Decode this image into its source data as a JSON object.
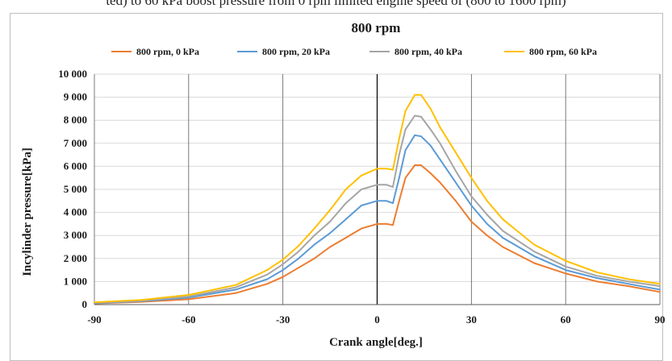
{
  "header": {
    "caption_fragment": "ted) to 60 kPa boost pressure from 0 rpm limited engine speed of (800 to 1600 rpm)"
  },
  "chart_data": {
    "type": "line",
    "title": "800 rpm",
    "xlabel": "Crank angle[deg.]",
    "ylabel": "Incylinder pressure[kPa]",
    "xlim": [
      -90,
      90
    ],
    "ylim": [
      0,
      10000
    ],
    "x_ticks": [
      "-90",
      "-60",
      "-30",
      "0",
      "30",
      "60",
      "90"
    ],
    "y_ticks": [
      "0",
      "1 000",
      "2 000",
      "3 000",
      "4 000",
      "5 000",
      "6 000",
      "7 000",
      "8 000",
      "9 000",
      "10 000"
    ],
    "grid": true,
    "legend_position": "top",
    "series": [
      {
        "name": "800 rpm, 0 kPa",
        "color": "#ed7d31",
        "points": [
          [
            -90,
            50
          ],
          [
            -75,
            120
          ],
          [
            -60,
            230
          ],
          [
            -45,
            500
          ],
          [
            -35,
            900
          ],
          [
            -30,
            1200
          ],
          [
            -25,
            1600
          ],
          [
            -20,
            2000
          ],
          [
            -15,
            2500
          ],
          [
            -10,
            2900
          ],
          [
            -5,
            3300
          ],
          [
            0,
            3500
          ],
          [
            3,
            3500
          ],
          [
            5,
            3450
          ],
          [
            7,
            4500
          ],
          [
            9,
            5500
          ],
          [
            12,
            6050
          ],
          [
            14,
            6050
          ],
          [
            17,
            5700
          ],
          [
            20,
            5300
          ],
          [
            25,
            4500
          ],
          [
            30,
            3600
          ],
          [
            35,
            3000
          ],
          [
            40,
            2500
          ],
          [
            50,
            1800
          ],
          [
            60,
            1350
          ],
          [
            70,
            1000
          ],
          [
            80,
            800
          ],
          [
            90,
            550
          ]
        ]
      },
      {
        "name": "800 rpm, 20 kPa",
        "color": "#5b9bd5",
        "points": [
          [
            -90,
            60
          ],
          [
            -75,
            150
          ],
          [
            -60,
            300
          ],
          [
            -45,
            650
          ],
          [
            -35,
            1100
          ],
          [
            -30,
            1500
          ],
          [
            -25,
            2000
          ],
          [
            -20,
            2600
          ],
          [
            -15,
            3100
          ],
          [
            -10,
            3700
          ],
          [
            -5,
            4300
          ],
          [
            0,
            4500
          ],
          [
            3,
            4500
          ],
          [
            5,
            4400
          ],
          [
            7,
            5500
          ],
          [
            9,
            6700
          ],
          [
            12,
            7350
          ],
          [
            14,
            7300
          ],
          [
            17,
            6900
          ],
          [
            20,
            6300
          ],
          [
            25,
            5300
          ],
          [
            30,
            4300
          ],
          [
            35,
            3500
          ],
          [
            40,
            2900
          ],
          [
            50,
            2100
          ],
          [
            60,
            1500
          ],
          [
            70,
            1150
          ],
          [
            80,
            900
          ],
          [
            90,
            650
          ]
        ]
      },
      {
        "name": "800 rpm, 40 kPa",
        "color": "#a5a5a5",
        "points": [
          [
            -90,
            80
          ],
          [
            -75,
            170
          ],
          [
            -60,
            350
          ],
          [
            -45,
            750
          ],
          [
            -35,
            1300
          ],
          [
            -30,
            1750
          ],
          [
            -25,
            2300
          ],
          [
            -20,
            3000
          ],
          [
            -15,
            3600
          ],
          [
            -10,
            4400
          ],
          [
            -5,
            5000
          ],
          [
            0,
            5200
          ],
          [
            3,
            5200
          ],
          [
            5,
            5100
          ],
          [
            7,
            6500
          ],
          [
            9,
            7600
          ],
          [
            12,
            8200
          ],
          [
            14,
            8150
          ],
          [
            17,
            7600
          ],
          [
            20,
            7000
          ],
          [
            25,
            5800
          ],
          [
            30,
            4700
          ],
          [
            35,
            3900
          ],
          [
            40,
            3200
          ],
          [
            50,
            2300
          ],
          [
            60,
            1650
          ],
          [
            70,
            1250
          ],
          [
            80,
            1000
          ],
          [
            90,
            800
          ]
        ]
      },
      {
        "name": "800 rpm, 60 kPa",
        "color": "#ffc000",
        "points": [
          [
            -90,
            100
          ],
          [
            -75,
            200
          ],
          [
            -60,
            420
          ],
          [
            -45,
            850
          ],
          [
            -35,
            1500
          ],
          [
            -30,
            1950
          ],
          [
            -25,
            2550
          ],
          [
            -20,
            3300
          ],
          [
            -15,
            4100
          ],
          [
            -10,
            5000
          ],
          [
            -5,
            5600
          ],
          [
            0,
            5900
          ],
          [
            3,
            5900
          ],
          [
            5,
            5850
          ],
          [
            7,
            7200
          ],
          [
            9,
            8400
          ],
          [
            12,
            9100
          ],
          [
            14,
            9100
          ],
          [
            17,
            8500
          ],
          [
            20,
            7700
          ],
          [
            25,
            6600
          ],
          [
            30,
            5500
          ],
          [
            35,
            4500
          ],
          [
            40,
            3700
          ],
          [
            50,
            2600
          ],
          [
            60,
            1900
          ],
          [
            70,
            1400
          ],
          [
            80,
            1100
          ],
          [
            90,
            900
          ]
        ]
      }
    ]
  }
}
